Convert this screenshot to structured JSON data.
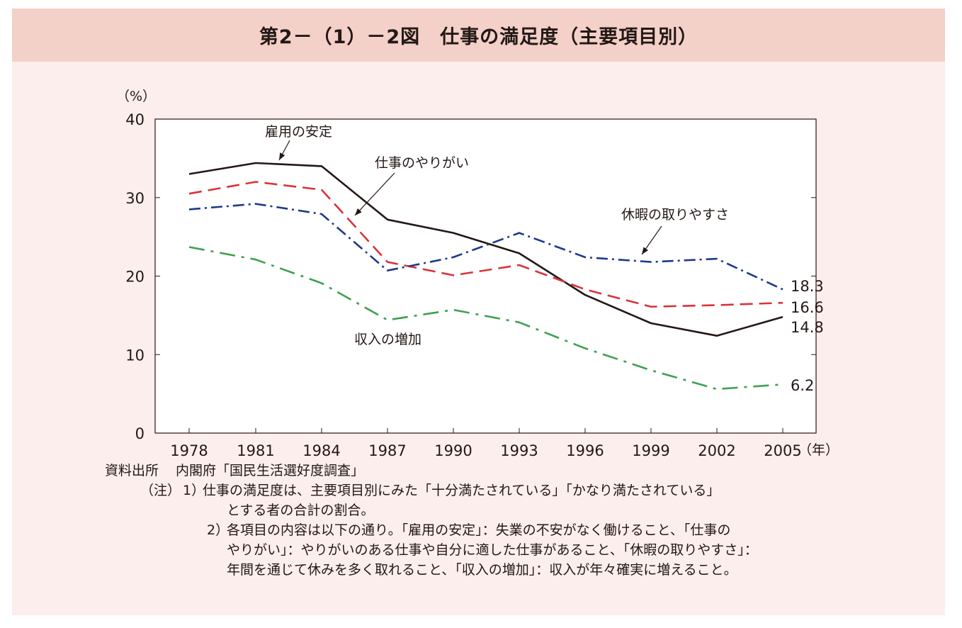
{
  "title": "第2－（1）－2図　仕事の満足度（主要項目別）",
  "chart_data": {
    "type": "line",
    "y_unit": "（%）",
    "x_unit": "（年）",
    "categories": [
      "1978",
      "1981",
      "1984",
      "1987",
      "1990",
      "1993",
      "1996",
      "1999",
      "2002",
      "2005"
    ],
    "ylim": [
      0,
      40
    ],
    "yticks": [
      0,
      10,
      20,
      30,
      40
    ],
    "grid": false,
    "series": [
      {
        "name": "雇用の安定",
        "color": "#231815",
        "dash": "solid",
        "values": [
          33.0,
          34.4,
          34.0,
          27.2,
          25.5,
          22.9,
          17.6,
          14.0,
          12.4,
          14.8
        ],
        "end_label": "14.8"
      },
      {
        "name": "仕事のやりがい",
        "color": "#d9333a",
        "dash": "dashed",
        "values": [
          30.5,
          32.0,
          31.0,
          21.8,
          20.1,
          21.4,
          18.3,
          16.1,
          16.3,
          16.6
        ],
        "end_label": "16.6"
      },
      {
        "name": "休暇の取りやすさ",
        "color": "#1f3a8a",
        "dash": "dashdot",
        "values": [
          28.5,
          29.2,
          27.9,
          20.7,
          22.4,
          25.5,
          22.4,
          21.8,
          22.2,
          18.3
        ],
        "end_label": "18.3"
      },
      {
        "name": "収入の増加",
        "color": "#3ea050",
        "dash": "dashed-long",
        "values": [
          23.7,
          22.1,
          19.1,
          14.4,
          15.7,
          14.1,
          10.8,
          8.0,
          5.6,
          6.2
        ],
        "end_label": "6.2"
      }
    ]
  },
  "notes": {
    "source_label": "資料出所",
    "source_text": "内閣府「国民生活選好度調査」",
    "note_label": "（注）",
    "items": [
      {
        "num": "1）",
        "lines": [
          "仕事の満足度は、主要項目別にみた「十分満たされている」「かなり満たされている」",
          "とする者の合計の割合。"
        ]
      },
      {
        "num": "2）",
        "lines": [
          "各項目の内容は以下の通り。「雇用の安定」：失業の不安がなく働けること、「仕事の",
          "やりがい」：やりがいのある仕事や自分に適した仕事があること、「休暇の取りやすさ」：",
          "年間を通じて休みを多く取れること、「収入の増加」：収入が年々確実に増えること。"
        ]
      }
    ]
  }
}
